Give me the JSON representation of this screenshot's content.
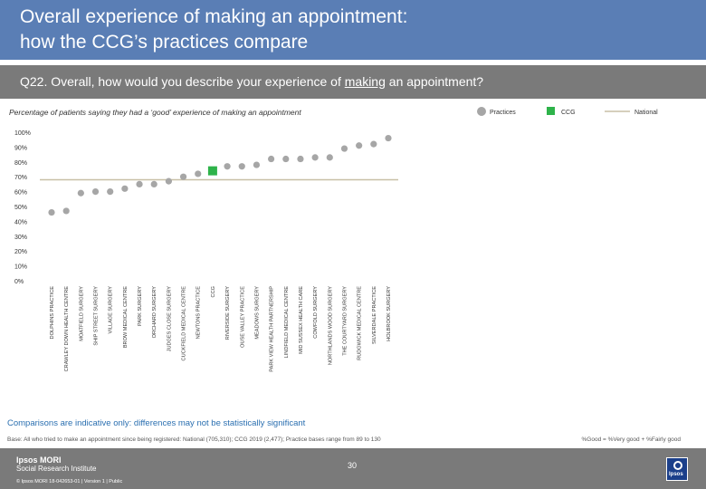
{
  "header": {
    "title_line1": "Overall experience of making an appointment:",
    "title_line2": "how the CCG’s practices compare"
  },
  "question": {
    "prefix": "Q22. Overall, how would you describe your experience of ",
    "underlined": "making",
    "suffix": " an appointment?"
  },
  "subtitle": "Percentage of patients saying they had  a ‘good’ experience of making an appointment",
  "colors": {
    "practice_dot": "#a6a6a6",
    "ccg_square": "#2eb34a",
    "national_line": "#c8bfa6",
    "header_bg": "#5a7eb5",
    "question_bg": "#7a7a7a",
    "note_text": "#2a6fb0"
  },
  "chart_data": {
    "type": "scatter",
    "ylim": [
      0,
      100
    ],
    "yticks": [
      0,
      10,
      20,
      30,
      40,
      50,
      60,
      70,
      80,
      90,
      100
    ],
    "ytick_labels": [
      "0%",
      "10%",
      "20%",
      "30%",
      "40%",
      "50%",
      "60%",
      "70%",
      "80%",
      "90%",
      "100%"
    ],
    "legend": [
      "Practices",
      "CCG",
      "National"
    ],
    "legend_position": "top-right",
    "national_value": 68,
    "categories": [
      "DOLPHINS PRACTICE",
      "CRAWLEY DOWN HEALTH CENTRE",
      "MOATFIELD SURGERY",
      "SHIP STREET SURGERY",
      "VILLAGE SURGERY",
      "BROW MEDICAL CENTRE",
      "PARK SURGERY",
      "ORCHARD SURGERY",
      "JUDGES CLOSE SURGERY",
      "CUCKFIELD MEDICAL CENTRE",
      "NEWTONS PRACTICE",
      "CCG",
      "RIVERSIDE SURGERY",
      "OUSE VALLEY PRACTICE",
      "MEADOWS SURGERY",
      "PARK VIEW HEALTH PARTNERSHIP",
      "LINDFIELD MEDICAL CENTRE",
      "MID SUSSEX HEALTH CARE",
      "COWFOLD SURGERY",
      "NORTHLANDS WOOD SURGERY",
      "THE COURTYARD SURGERY",
      "RUDGWICK MEDICAL CENTRE",
      "SILVERDALE PRACTICE",
      "HOLBROOK SURGERY"
    ],
    "values": [
      46,
      47,
      59,
      60,
      60,
      62,
      65,
      65,
      67,
      70,
      72,
      74,
      77,
      77,
      78,
      82,
      82,
      82,
      83,
      83,
      89,
      91,
      92,
      96
    ],
    "highlight_category": "CCG"
  },
  "note": "Comparisons are indicative only: differences may not be statistically significant",
  "base": "Base: All who tried to make an appointment since being registered: National (705,310); CCG 2019 (2,477); Practice bases range from 89 to 130",
  "definition": "%Good = %Very good + %Fairly good",
  "footer": {
    "logo_line1": "Ipsos MORI",
    "logo_line2": "Social Research Institute",
    "copyright": "© Ipsos MORI     18-042653-01 | Version 1 | Public",
    "page_number": "30",
    "badge_text": "Ipsos"
  }
}
